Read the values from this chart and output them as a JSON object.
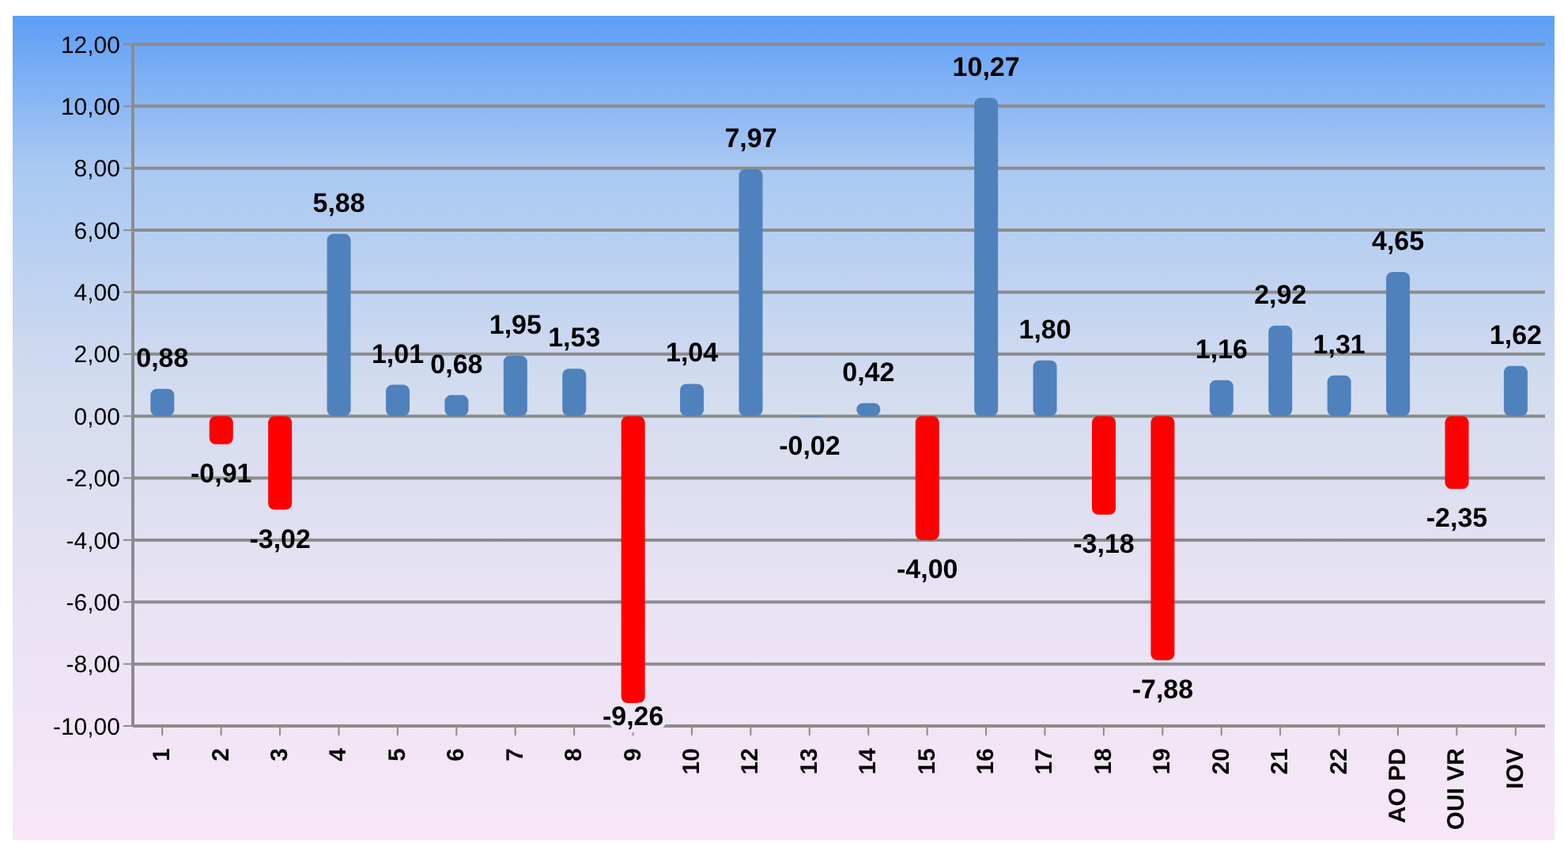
{
  "chart_data": {
    "type": "bar",
    "categories": [
      "1",
      "2",
      "3",
      "4",
      "5",
      "6",
      "7",
      "8",
      "9",
      "10",
      "12",
      "13",
      "14",
      "15",
      "16",
      "17",
      "18",
      "19",
      "20",
      "21",
      "22",
      "AO PD",
      "OUI VR",
      "IOV"
    ],
    "values": [
      0.88,
      -0.91,
      -3.02,
      5.88,
      1.01,
      0.68,
      1.95,
      1.53,
      -9.26,
      1.04,
      7.97,
      -0.02,
      0.42,
      -4.0,
      10.27,
      1.8,
      -3.18,
      -7.88,
      1.16,
      2.92,
      1.31,
      4.65,
      -2.35,
      1.62
    ],
    "colors": [
      "#4f81bd",
      "#ff0000",
      "#ff0000",
      "#4f81bd",
      "#4f81bd",
      "#4f81bd",
      "#4f81bd",
      "#4f81bd",
      "#ff0000",
      "#4f81bd",
      "#4f81bd",
      "#4f81bd",
      "#4f81bd",
      "#ff0000",
      "#4f81bd",
      "#4f81bd",
      "#ff0000",
      "#ff0000",
      "#4f81bd",
      "#4f81bd",
      "#4f81bd",
      "#4f81bd",
      "#ff0000",
      "#4f81bd"
    ],
    "value_labels": [
      "0,88",
      "-0,91",
      "-3,02",
      "5,88",
      "1,01",
      "0,68",
      "1,95",
      "1,53",
      "-9,26",
      "1,04",
      "7,97",
      "-0,02",
      "0,42",
      "-4,00",
      "10,27",
      "1,80",
      "-3,18",
      "-7,88",
      "1,16",
      "2,92",
      "1,31",
      "4,65",
      "-2,35",
      "1,62"
    ],
    "ylim": [
      -10,
      12
    ],
    "yticks": [
      {
        "value": -10,
        "label": "-10,00"
      },
      {
        "value": -8,
        "label": "-8,00"
      },
      {
        "value": -6,
        "label": "-6,00"
      },
      {
        "value": -4,
        "label": "-4,00"
      },
      {
        "value": -2,
        "label": "-2,00"
      },
      {
        "value": 0,
        "label": "0,00"
      },
      {
        "value": 2,
        "label": "2,00"
      },
      {
        "value": 4,
        "label": "4,00"
      },
      {
        "value": 6,
        "label": "6,00"
      },
      {
        "value": 8,
        "label": "8,00"
      },
      {
        "value": 10,
        "label": "10,00"
      },
      {
        "value": 12,
        "label": "12,00"
      }
    ],
    "grid": "y",
    "legend": false
  }
}
